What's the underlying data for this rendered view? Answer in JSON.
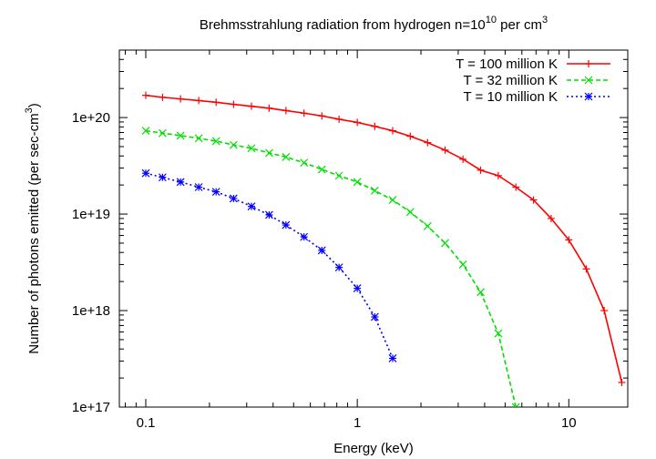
{
  "chart_data": {
    "type": "line",
    "title_main": "Brehmsstrahlung radiation from hydrogen n=10",
    "title_sup": "10",
    "title_tail": " per cm",
    "title_tail_sup": "3",
    "xlabel": "Energy (keV)",
    "ylabel_main": "Number of photons emitted (per sec-cm",
    "ylabel_sup": "3",
    "ylabel_tail": ")",
    "x_scale": "log",
    "y_scale": "log",
    "xlim": [
      0.075,
      19
    ],
    "ylim": [
      1e+17,
      5e+20
    ],
    "x_ticks": [
      {
        "value": 0.1,
        "label": "0.1"
      },
      {
        "value": 1,
        "label": "1"
      },
      {
        "value": 10,
        "label": "10"
      }
    ],
    "y_ticks": [
      {
        "value": 1e+17,
        "label": "1e+17"
      },
      {
        "value": 1e+18,
        "label": "1e+18"
      },
      {
        "value": 1e+19,
        "label": "1e+19"
      },
      {
        "value": 1e+20,
        "label": "1e+20"
      }
    ],
    "grid": false,
    "legend_position": "top-right",
    "series": [
      {
        "name": "T = 100 million K",
        "color": "#ff0000",
        "line_style": "solid",
        "marker": "plus",
        "x": [
          0.1,
          0.12,
          0.146,
          0.178,
          0.215,
          0.26,
          0.316,
          0.383,
          0.46,
          0.56,
          0.68,
          0.82,
          1.0,
          1.21,
          1.47,
          1.78,
          2.15,
          2.6,
          3.16,
          3.83,
          4.64,
          5.62,
          6.81,
          8.25,
          10.0,
          12.1,
          14.7,
          17.8
        ],
        "y": [
          1.7e+20,
          1.62e+20,
          1.56e+20,
          1.5e+20,
          1.44e+20,
          1.37e+20,
          1.31e+20,
          1.25e+20,
          1.18e+20,
          1.11e+20,
          1.04e+20,
          9.6e+19,
          8.9e+19,
          8.1e+19,
          7.3e+19,
          6.4e+19,
          5.5e+19,
          4.6e+19,
          3.7e+19,
          2.85e+19,
          2.5e+19,
          1.9e+19,
          1.4e+19,
          9e+18,
          5.4e+18,
          2.7e+18,
          1e+18,
          1.8e+17
        ]
      },
      {
        "name": "T = 32 million K",
        "color": "#00e000",
        "line_style": "dashed",
        "marker": "cross",
        "x": [
          0.1,
          0.12,
          0.146,
          0.178,
          0.215,
          0.26,
          0.316,
          0.383,
          0.46,
          0.56,
          0.68,
          0.82,
          1.0,
          1.21,
          1.47,
          1.78,
          2.15,
          2.6,
          3.16,
          3.83,
          4.64,
          5.62
        ],
        "y": [
          7.3e+19,
          6.9e+19,
          6.5e+19,
          6.1e+19,
          5.7e+19,
          5.2e+19,
          4.8e+19,
          4.3e+19,
          3.9e+19,
          3.4e+19,
          2.9e+19,
          2.5e+19,
          2.15e+19,
          1.75e+19,
          1.4e+19,
          1.05e+19,
          7.5e+18,
          5e+18,
          3e+18,
          1.55e+18,
          5.8e+17,
          1e+17
        ]
      },
      {
        "name": "T = 10 million K",
        "color": "#0000ff",
        "line_style": "dotted",
        "marker": "star",
        "x": [
          0.1,
          0.12,
          0.146,
          0.178,
          0.215,
          0.26,
          0.316,
          0.383,
          0.46,
          0.56,
          0.68,
          0.82,
          1.0,
          1.21,
          1.47
        ],
        "y": [
          2.65e+19,
          2.4e+19,
          2.15e+19,
          1.9e+19,
          1.7e+19,
          1.45e+19,
          1.2e+19,
          9.8e+18,
          7.7e+18,
          5.8e+18,
          4.2e+18,
          2.8e+18,
          1.7e+18,
          8.6e+17,
          3.2e+17
        ]
      }
    ]
  }
}
